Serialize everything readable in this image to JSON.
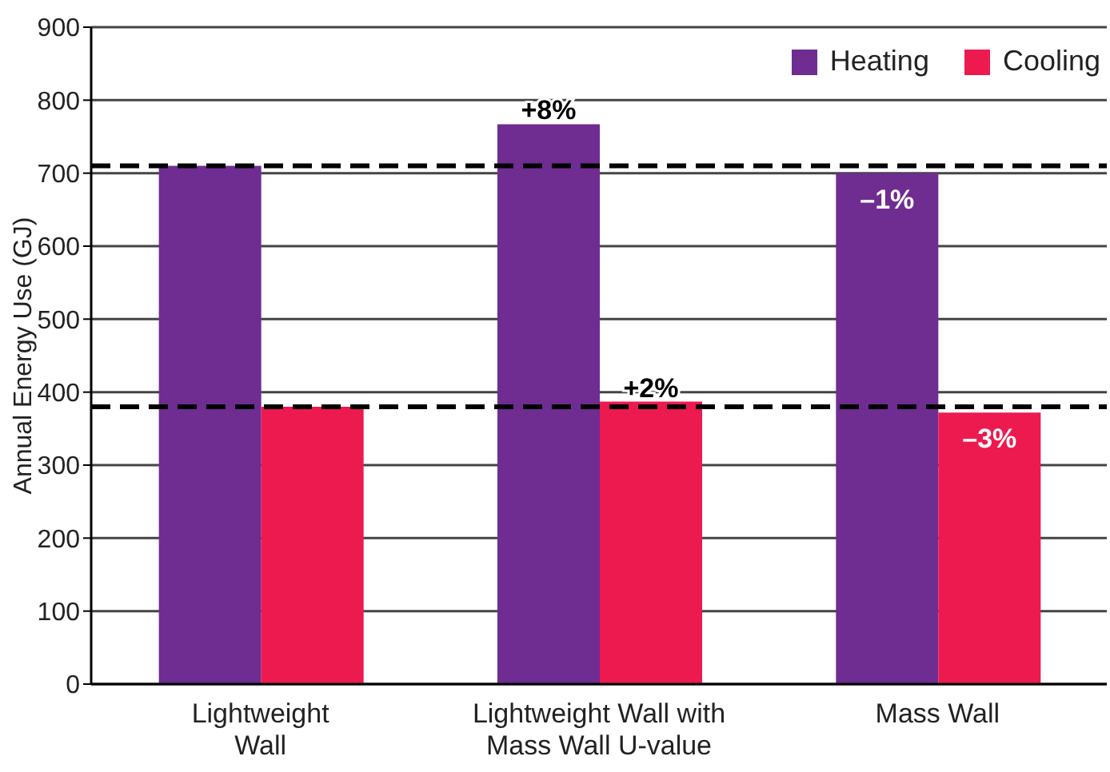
{
  "chart_data": {
    "type": "bar",
    "categories": [
      "Lightweight Wall",
      "Lightweight Wall with Mass Wall U-value",
      "Mass Wall"
    ],
    "ylabel": "Annual Energy Use (GJ)",
    "series": [
      {
        "name": "Heating",
        "color": "#6f2c91",
        "values": [
          710,
          767,
          700
        ]
      },
      {
        "name": "Cooling",
        "color": "#ec1a4f",
        "values": [
          380,
          387,
          372
        ]
      }
    ],
    "annotations": [
      {
        "text": "+8%",
        "x": "Lightweight Wall with Mass Wall U-value",
        "y": 767
      },
      {
        "text": "+2%",
        "x": "Lightweight Wall with Mass Wall U-value",
        "y": 387
      },
      {
        "text": "–1%",
        "x": "Mass Wall",
        "y": 700
      },
      {
        "text": "–3%",
        "x": "Mass Wall",
        "y": 372
      }
    ],
    "ylim": [
      0,
      900
    ],
    "yticks": [
      0,
      100,
      200,
      300,
      400,
      500,
      600,
      700,
      800,
      900
    ],
    "grid": "y",
    "legend": "top right",
    "ref_lines": [
      {
        "axis": "y",
        "value": 710,
        "color": "#000000",
        "line_style": "dashed"
      },
      {
        "axis": "y",
        "value": 380,
        "color": "#000000",
        "line_style": "dashed"
      }
    ]
  }
}
